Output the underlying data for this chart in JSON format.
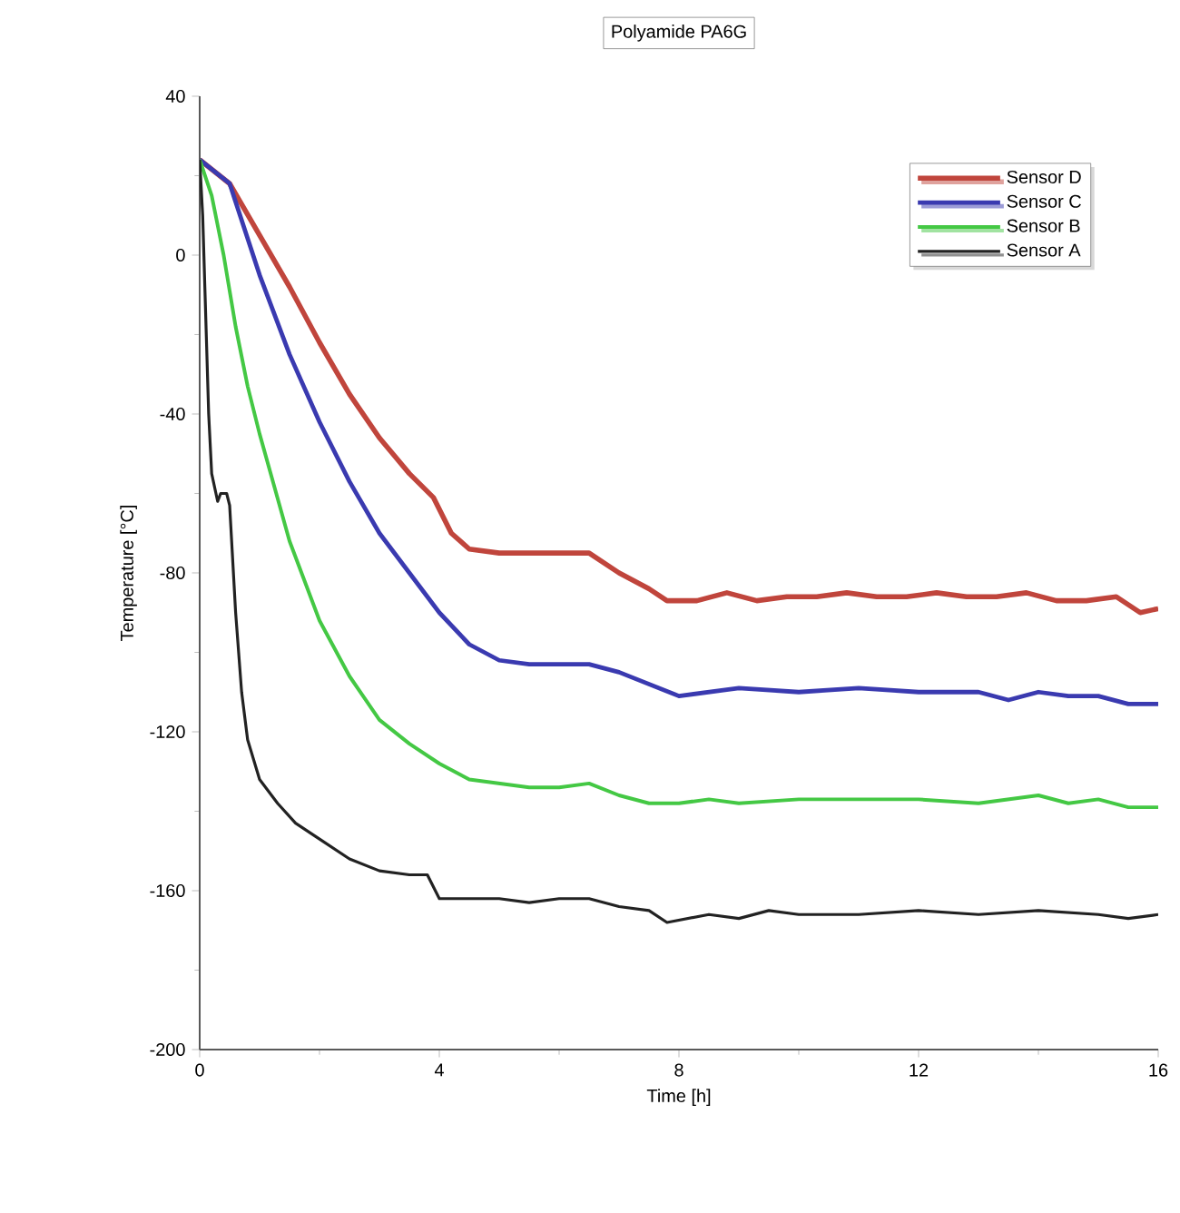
{
  "chart_data": {
    "type": "line",
    "title": "Polyamide PA6G",
    "xlabel": "Time [h]",
    "ylabel": "Temperature [°C]",
    "xlim": [
      0,
      16
    ],
    "xticks": [
      0,
      4,
      8,
      12,
      16
    ],
    "ylim": [
      -200,
      40
    ],
    "yticks": [
      -200,
      -160,
      -120,
      -80,
      -40,
      0,
      40
    ],
    "grid": false,
    "legend": "top right",
    "marker": "none",
    "line_style": "solid",
    "series": [
      {
        "name": "Sensor D",
        "color": "#c0453c",
        "x": [
          0,
          0.5,
          1,
          1.5,
          2,
          2.5,
          3,
          3.5,
          3.9,
          4.2,
          4.5,
          5,
          5.5,
          6,
          6.5,
          7,
          7.5,
          7.8,
          8.3,
          8.8,
          9.3,
          9.8,
          10.3,
          10.8,
          11.3,
          11.8,
          12.3,
          12.8,
          13.3,
          13.8,
          14.3,
          14.8,
          15.3,
          15.7,
          16
        ],
        "values": [
          24,
          18,
          5,
          -8,
          -22,
          -35,
          -46,
          -55,
          -61,
          -70,
          -74,
          -75,
          -75,
          -75,
          -75,
          -80,
          -84,
          -87,
          -87,
          -85,
          -87,
          -86,
          -86,
          -85,
          -86,
          -86,
          -85,
          -86,
          -86,
          -85,
          -87,
          -87,
          -86,
          -90,
          -89
        ]
      },
      {
        "name": "Sensor C",
        "color": "#3a3ab0",
        "x": [
          0,
          0.5,
          1,
          1.5,
          2,
          2.5,
          3,
          3.5,
          4,
          4.5,
          5,
          5.5,
          6,
          6.5,
          7,
          7.5,
          8,
          8.5,
          9,
          10,
          11,
          12,
          13,
          13.5,
          14,
          14.5,
          15,
          15.5,
          16
        ],
        "values": [
          24,
          18,
          -5,
          -25,
          -42,
          -57,
          -70,
          -80,
          -90,
          -98,
          -102,
          -103,
          -103,
          -103,
          -105,
          -108,
          -111,
          -110,
          -109,
          -110,
          -109,
          -110,
          -110,
          -112,
          -110,
          -111,
          -111,
          -113,
          -113
        ]
      },
      {
        "name": "Sensor B",
        "color": "#44c844",
        "x": [
          0,
          0.2,
          0.4,
          0.6,
          0.8,
          1,
          1.5,
          2,
          2.5,
          3,
          3.5,
          4,
          4.5,
          5,
          5.5,
          6,
          6.5,
          7,
          7.5,
          8,
          8.5,
          9,
          10,
          11,
          12,
          13,
          14,
          14.5,
          15,
          15.5,
          16
        ],
        "values": [
          24,
          15,
          0,
          -18,
          -33,
          -45,
          -72,
          -92,
          -106,
          -117,
          -123,
          -128,
          -132,
          -133,
          -134,
          -134,
          -133,
          -136,
          -138,
          -138,
          -137,
          -138,
          -137,
          -137,
          -137,
          -138,
          -136,
          -138,
          -137,
          -139,
          -139
        ]
      },
      {
        "name": "Sensor A",
        "color": "#222222",
        "x": [
          0,
          0.05,
          0.1,
          0.15,
          0.2,
          0.3,
          0.35,
          0.45,
          0.5,
          0.6,
          0.7,
          0.8,
          1,
          1.3,
          1.6,
          2,
          2.5,
          3,
          3.5,
          3.8,
          4,
          4.5,
          5,
          5.5,
          6,
          6.5,
          7,
          7.5,
          7.8,
          8.5,
          9,
          9.5,
          10,
          11,
          12,
          13,
          14,
          15,
          15.5,
          16
        ],
        "values": [
          24,
          10,
          -15,
          -40,
          -55,
          -62,
          -60,
          -60,
          -63,
          -90,
          -110,
          -122,
          -132,
          -138,
          -143,
          -147,
          -152,
          -155,
          -156,
          -156,
          -162,
          -162,
          -162,
          -163,
          -162,
          -162,
          -164,
          -165,
          -168,
          -166,
          -167,
          -165,
          -166,
          -166,
          -165,
          -166,
          -165,
          -166,
          -167,
          -166
        ]
      }
    ]
  }
}
